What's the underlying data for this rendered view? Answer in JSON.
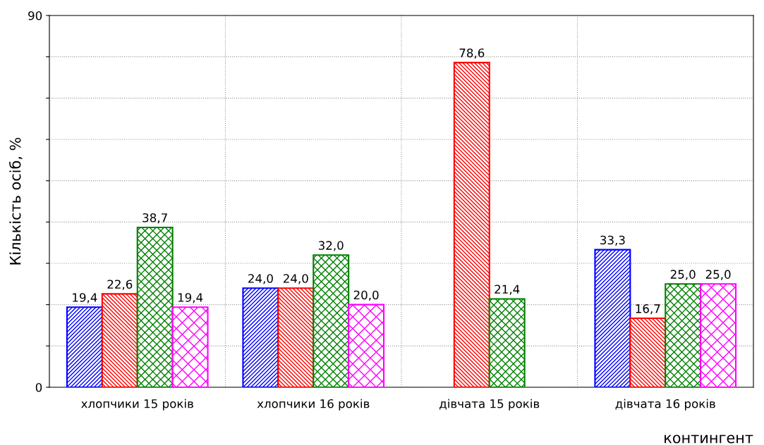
{
  "chart_data": {
    "type": "bar",
    "categories": [
      "хлопчики 15 років",
      "хлопчики 16 років",
      "дівчата 15 років",
      "дівчата 16 років"
    ],
    "series": [
      {
        "color": "#0000ff",
        "values": [
          19.4,
          24.0,
          null,
          33.3
        ],
        "value_labels": [
          "19,4",
          "24,0",
          null,
          "33,3"
        ]
      },
      {
        "color": "#ff0000",
        "values": [
          22.6,
          24.0,
          78.6,
          16.7
        ],
        "value_labels": [
          "22,6",
          "24,0",
          "78,6",
          "16,7"
        ]
      },
      {
        "color": "#008000",
        "values": [
          38.7,
          32.0,
          21.4,
          25.0
        ],
        "value_labels": [
          "38,7",
          "32,0",
          "21,4",
          "25,0"
        ]
      },
      {
        "color": "#ff00ff",
        "values": [
          19.4,
          20.0,
          null,
          25.0
        ],
        "value_labels": [
          "19,4",
          "20,0",
          null,
          "25,0"
        ]
      }
    ],
    "xlabel": "контингент",
    "ylabel": "Кількість осіб, %",
    "ylim": [
      0,
      90
    ],
    "yticks": [
      0,
      {
        "value": 10,
        "label": null
      },
      {
        "value": 20,
        "label": null
      },
      {
        "value": 30,
        "label": null
      },
      {
        "value": 40,
        "label": null
      },
      {
        "value": 50,
        "label": null
      },
      {
        "value": 60,
        "label": null
      },
      {
        "value": 70,
        "label": null
      },
      {
        "value": 80,
        "label": null
      },
      90
    ],
    "grid": true
  }
}
